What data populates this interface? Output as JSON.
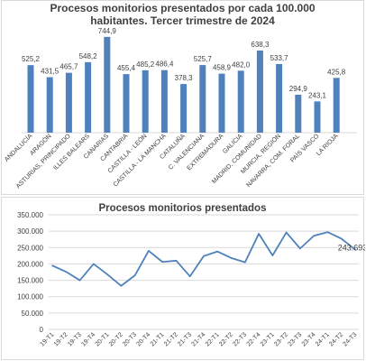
{
  "chart_data": [
    {
      "type": "bar",
      "title_line1": "Procesos monitorios presentados por cada 100.000",
      "title_line2": "habitantes. Tercer trimestre de 2024",
      "categories": [
        "ANDALUCÍA",
        "ARAGÓN",
        "ASTURIAS, PRINCIPADO",
        "ILLES BALEARS",
        "CANARIAS",
        "CANTABRIA",
        "CASTILLA - LEÓN",
        "CASTILLA - LA MANCHA",
        "CATALUÑA",
        "C. VALENCIANA",
        "EXTREMADURA",
        "GALICIA",
        "MADRID, COMUNIDAD",
        "MURCIA, REGIÓN",
        "NAVARRA, COM. FORAL",
        "PAÍS VASCO",
        "LA RIOJA"
      ],
      "values": [
        525.2,
        431.5,
        465.7,
        548.2,
        744.9,
        455.4,
        485.2,
        486.4,
        378.3,
        525.7,
        458.9,
        482.0,
        638.3,
        533.7,
        294.9,
        243.1,
        425.8
      ],
      "labels": [
        "525,2",
        "431,5",
        "465,7",
        "548,2",
        "744,9",
        "455,4",
        "485,2",
        "486,4",
        "378,3",
        "525,7",
        "458,9",
        "482,0",
        "638,3",
        "533,7",
        "294,9",
        "243,1",
        "425,8"
      ],
      "ylim": [
        0,
        800
      ],
      "color": "#4f81bd"
    },
    {
      "type": "line",
      "title": "Procesos monitorios presentados",
      "categories": [
        "19-T1",
        "19-T2",
        "19-T3",
        "19-T4",
        "20-T1",
        "20-T2",
        "20-T3",
        "20-T4",
        "21-T1",
        "21-T2",
        "21-T3",
        "21-T4",
        "22-T1",
        "22-T2",
        "22-T3",
        "22-T4",
        "23-T1",
        "23-T2",
        "23-T3",
        "23-T4",
        "24-T1",
        "24-T2",
        "24-T3"
      ],
      "values": [
        195000,
        176000,
        150000,
        200000,
        168000,
        133000,
        165000,
        240000,
        206000,
        210000,
        162000,
        224000,
        238000,
        218000,
        205000,
        292000,
        226000,
        296000,
        247000,
        286000,
        297000,
        277000,
        243693
      ],
      "last_label": "243.693",
      "yticks": [
        "0",
        "50.000",
        "100.000",
        "150.000",
        "200.000",
        "250.000",
        "300.000",
        "350.000"
      ],
      "ylim": [
        0,
        350000
      ],
      "color": "#4f81bd",
      "grid_color": "#d9d9d9"
    }
  ]
}
